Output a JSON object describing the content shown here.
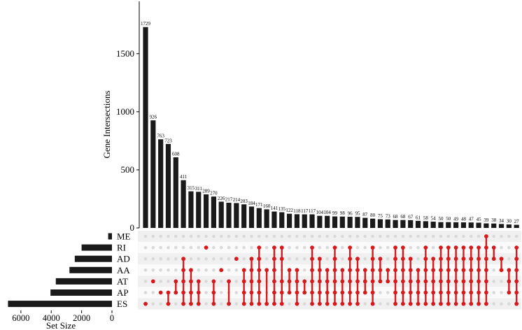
{
  "chart_data": {
    "type": "upset",
    "intersection_ylabel": "Gene Intersections",
    "set_size_xlabel": "Set Size",
    "intersection_yticks": [
      0,
      500,
      1000,
      1500
    ],
    "intersection_ylim": [
      0,
      1950
    ],
    "set_size_xticks": [
      6000,
      4000,
      2000,
      0
    ],
    "set_size_xlim": [
      0,
      7100
    ],
    "colors": {
      "bars": "#1a1a1a",
      "dot_active": "#d7191c",
      "dot_inactive": "#d9d9d9",
      "stripe": "#f0f0f0"
    },
    "sets": [
      {
        "name": "ME",
        "size": 250
      },
      {
        "name": "RI",
        "size": 2000
      },
      {
        "name": "AD",
        "size": 2450
      },
      {
        "name": "AA",
        "size": 2800
      },
      {
        "name": "AT",
        "size": 3700
      },
      {
        "name": "AP",
        "size": 4050
      },
      {
        "name": "ES",
        "size": 6850
      }
    ],
    "intersections": [
      {
        "value": 1729,
        "sets": [
          "ES"
        ]
      },
      {
        "value": 926,
        "sets": [
          "AT"
        ]
      },
      {
        "value": 763,
        "sets": [
          "AP"
        ]
      },
      {
        "value": 723,
        "sets": [
          "AP",
          "ES"
        ]
      },
      {
        "value": 608,
        "sets": [
          "AT",
          "AP"
        ]
      },
      {
        "value": 411,
        "sets": [
          "AD",
          "AA",
          "AT",
          "AP",
          "ES"
        ]
      },
      {
        "value": 315,
        "sets": [
          "AA",
          "AT",
          "AP",
          "ES"
        ]
      },
      {
        "value": 311,
        "sets": [
          "AT",
          "AP",
          "ES"
        ]
      },
      {
        "value": 289,
        "sets": [
          "RI"
        ]
      },
      {
        "value": 270,
        "sets": [
          "AT",
          "AP",
          "ES"
        ]
      },
      {
        "value": 226,
        "sets": [
          "AA"
        ]
      },
      {
        "value": 217,
        "sets": [
          "AT",
          "ES"
        ]
      },
      {
        "value": 214,
        "sets": [
          "AD"
        ]
      },
      {
        "value": 203,
        "sets": [
          "AA",
          "AT",
          "AP",
          "ES"
        ]
      },
      {
        "value": 184,
        "sets": [
          "AD",
          "AA",
          "AT",
          "AP",
          "ES"
        ]
      },
      {
        "value": 171,
        "sets": [
          "RI",
          "AD",
          "AA",
          "AT",
          "AP",
          "ES"
        ]
      },
      {
        "value": 160,
        "sets": [
          "AA",
          "ES"
        ]
      },
      {
        "value": 141,
        "sets": [
          "RI",
          "AD",
          "AA",
          "AT",
          "AP",
          "ES"
        ]
      },
      {
        "value": 135,
        "sets": [
          "RI",
          "AD",
          "AT",
          "AP",
          "ES"
        ]
      },
      {
        "value": 122,
        "sets": [
          "AA",
          "AT",
          "AP"
        ]
      },
      {
        "value": 118,
        "sets": [
          "AA",
          "AT",
          "AP",
          "ES"
        ]
      },
      {
        "value": 117,
        "sets": [
          "AT",
          "AP"
        ]
      },
      {
        "value": 117,
        "sets": [
          "RI",
          "AD",
          "AA",
          "AT",
          "AP",
          "ES"
        ]
      },
      {
        "value": 104,
        "sets": [
          "AD",
          "AA",
          "AT",
          "AP",
          "ES"
        ]
      },
      {
        "value": 104,
        "sets": [
          "AA",
          "AT",
          "AP",
          "ES"
        ]
      },
      {
        "value": 99,
        "sets": [
          "RI",
          "AD",
          "AA",
          "AT",
          "AP",
          "ES"
        ]
      },
      {
        "value": 98,
        "sets": [
          "AA",
          "AT",
          "AP",
          "ES"
        ]
      },
      {
        "value": 96,
        "sets": [
          "RI",
          "AD",
          "AA",
          "AT",
          "AP",
          "ES"
        ]
      },
      {
        "value": 95,
        "sets": [
          "AD",
          "AA",
          "AT",
          "AP",
          "ES"
        ]
      },
      {
        "value": 87,
        "sets": [
          "AA",
          "AT",
          "AP"
        ]
      },
      {
        "value": 80,
        "sets": [
          "RI",
          "AD",
          "AA",
          "AT",
          "AP",
          "ES"
        ]
      },
      {
        "value": 75,
        "sets": [
          "AD",
          "AA",
          "AT"
        ]
      },
      {
        "value": 73,
        "sets": [
          "AA",
          "AT"
        ]
      },
      {
        "value": 68,
        "sets": [
          "RI",
          "AD",
          "AA",
          "AT",
          "AP",
          "ES"
        ]
      },
      {
        "value": 68,
        "sets": [
          "RI",
          "AD",
          "AA",
          "AT",
          "AP",
          "ES"
        ]
      },
      {
        "value": 67,
        "sets": [
          "AD",
          "AA",
          "AT",
          "AP",
          "ES"
        ]
      },
      {
        "value": 61,
        "sets": [
          "AA",
          "AT",
          "AP",
          "ES"
        ]
      },
      {
        "value": 58,
        "sets": [
          "RI",
          "AD",
          "AA",
          "AT",
          "AP",
          "ES"
        ]
      },
      {
        "value": 54,
        "sets": [
          "AD",
          "AA",
          "AT",
          "AP",
          "ES"
        ]
      },
      {
        "value": 50,
        "sets": [
          "RI",
          "AD",
          "AA",
          "AT",
          "AP",
          "ES"
        ]
      },
      {
        "value": 50,
        "sets": [
          "RI",
          "AD",
          "AA",
          "AT",
          "AP",
          "ES"
        ]
      },
      {
        "value": 49,
        "sets": [
          "RI",
          "AD",
          "AA",
          "AT",
          "AP",
          "ES"
        ]
      },
      {
        "value": 48,
        "sets": [
          "RI",
          "AD",
          "AA",
          "AT",
          "AP",
          "ES"
        ]
      },
      {
        "value": 47,
        "sets": [
          "RI",
          "AD",
          "AA",
          "AT",
          "AP",
          "ES"
        ]
      },
      {
        "value": 45,
        "sets": [
          "RI",
          "AD",
          "AA",
          "AT",
          "AP",
          "ES"
        ]
      },
      {
        "value": 39,
        "sets": [
          "ME",
          "RI",
          "AD",
          "AA",
          "AT",
          "AP",
          "ES"
        ]
      },
      {
        "value": 38,
        "sets": [
          "RI",
          "AD"
        ]
      },
      {
        "value": 34,
        "sets": [
          "AD",
          "AA"
        ]
      },
      {
        "value": 30,
        "sets": [
          "AA",
          "AT",
          "AP"
        ]
      },
      {
        "value": 27,
        "sets": [
          "RI",
          "AD",
          "AA",
          "AT",
          "AP",
          "ES"
        ]
      }
    ]
  }
}
